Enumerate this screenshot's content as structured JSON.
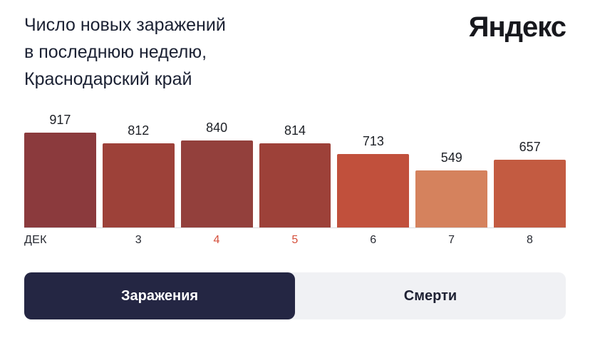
{
  "logo": {
    "text": "Яндекс"
  },
  "title": {
    "text": "Число новых заражений\nв последнюю неделю,\nКраснодарский край"
  },
  "chart_data": {
    "type": "bar",
    "title": "Число новых заражений в последнюю неделю, Краснодарский край",
    "categories": [
      "ДЕК",
      "3",
      "4",
      "5",
      "6",
      "7",
      "8"
    ],
    "values": [
      917,
      812,
      840,
      814,
      713,
      549,
      657
    ],
    "bar_colors": [
      "#8b3a3d",
      "#9d4139",
      "#93403c",
      "#9d4139",
      "#c1503c",
      "#d5825d",
      "#c35b41"
    ],
    "tick_colors": [
      "#282b33",
      "#282b33",
      "#d5503c",
      "#d5503c",
      "#282b33",
      "#282b33",
      "#282b33"
    ],
    "ylim": [
      0,
      917
    ],
    "xlabel": "",
    "ylabel": "",
    "grid": false,
    "legend": "none",
    "value_labels_shown": true
  },
  "tabs": [
    {
      "label": "Заражения",
      "active": true
    },
    {
      "label": "Смерти",
      "active": false
    }
  ],
  "colors": {
    "active_tab_bg": "#242643",
    "inactive_tab_bg": "#f0f1f4",
    "title_text": "#1b2133",
    "axis_line": "#d9dbde"
  }
}
